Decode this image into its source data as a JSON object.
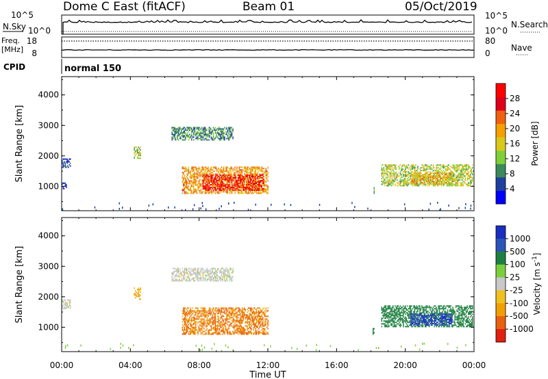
{
  "header": {
    "station": "Dome C East (fitACF)",
    "beam": "Beam 01",
    "date": "05/Oct/2019"
  },
  "top_panels": {
    "nsky_label": "N.Sky",
    "nsearch_label": "N.Search",
    "nsky_ticks": [
      "10^5",
      "10^0"
    ],
    "nsearch_ticks": [
      "10^5",
      "10^0"
    ],
    "freq_label_line1": "Freq.",
    "freq_label_line2": "[MHz]",
    "freq_ticks": [
      "18",
      "8"
    ],
    "nave_label": "Nave",
    "nave_ticks": [
      "80",
      "0"
    ],
    "cpid_label": "CPID",
    "cpid_value": "normal 150"
  },
  "colors": {
    "power_scale": [
      "#0000ff",
      "#1f3fa0",
      "#3a8a5a",
      "#7fcf3a",
      "#d8c81a",
      "#f5a000",
      "#f06010",
      "#e0001a",
      "#ff0000"
    ],
    "velocity_scale": [
      "#1a2fc0",
      "#2a55b8",
      "#1e8040",
      "#7ccf3c",
      "#c8c8c8",
      "#f0c020",
      "#f0a000",
      "#e86010",
      "#e02010",
      "#ff0000"
    ]
  },
  "chart_data": [
    {
      "type": "heatmap",
      "name": "power",
      "ylabel": "Slant Range [km]",
      "xlabel": "Time UT",
      "x_ticks": [
        "00:00",
        "04:00",
        "08:00",
        "12:00",
        "16:00",
        "20:00",
        "00:00"
      ],
      "y_ticks": [
        1000,
        2000,
        3000,
        4000
      ],
      "ylim": [
        200,
        4600
      ],
      "xlim_hours": [
        0,
        24
      ],
      "colorbar_label": "Power [dB]",
      "colorbar_ticks": [
        4,
        8,
        12,
        16,
        20,
        24,
        28
      ],
      "colorbar_range": [
        0,
        32
      ],
      "regions": [
        {
          "t": [
            7.0,
            12.0
          ],
          "r": [
            750,
            1650
          ],
          "value": 20
        },
        {
          "t": [
            8.2,
            11.8
          ],
          "r": [
            850,
            1350
          ],
          "value": 27
        },
        {
          "t": [
            6.4,
            10.0
          ],
          "r": [
            2500,
            2950
          ],
          "value": 9
        },
        {
          "t": [
            0.0,
            0.5
          ],
          "r": [
            1600,
            1900
          ],
          "value": 6
        },
        {
          "t": [
            0.0,
            0.3
          ],
          "r": [
            900,
            1100
          ],
          "value": 6
        },
        {
          "t": [
            18.6,
            23.9
          ],
          "r": [
            1000,
            1700
          ],
          "value": 14
        },
        {
          "t": [
            20.3,
            22.7
          ],
          "r": [
            1050,
            1450
          ],
          "value": 18
        },
        {
          "t": [
            4.2,
            4.6
          ],
          "r": [
            1900,
            2300
          ],
          "value": 14
        },
        {
          "t": [
            18.1,
            18.2
          ],
          "r": [
            750,
            950
          ],
          "value": 8
        }
      ]
    },
    {
      "type": "heatmap",
      "name": "velocity",
      "ylabel": "Slant Range [km]",
      "xlabel": "Time UT",
      "x_ticks": [
        "00:00",
        "04:00",
        "08:00",
        "12:00",
        "16:00",
        "20:00",
        "00:00"
      ],
      "y_ticks": [
        1000,
        2000,
        3000,
        4000
      ],
      "ylim": [
        200,
        4600
      ],
      "xlim_hours": [
        0,
        24
      ],
      "colorbar_label": "Velocity [m s^-1]",
      "colorbar_ticks": [
        "1000",
        "500",
        "100",
        "25",
        "-25",
        "-100",
        "-500",
        "-1000"
      ],
      "regions": [
        {
          "t": [
            7.0,
            12.0
          ],
          "r": [
            750,
            1650
          ],
          "value": -300
        },
        {
          "t": [
            6.4,
            10.0
          ],
          "r": [
            2500,
            2950
          ],
          "value": 0
        },
        {
          "t": [
            0.0,
            0.5
          ],
          "r": [
            1600,
            1900
          ],
          "value": 0
        },
        {
          "t": [
            18.6,
            23.9
          ],
          "r": [
            1000,
            1700
          ],
          "value": 150
        },
        {
          "t": [
            20.3,
            22.7
          ],
          "r": [
            1050,
            1450
          ],
          "value": 800
        },
        {
          "t": [
            4.2,
            4.6
          ],
          "r": [
            1900,
            2300
          ],
          "value": -80
        },
        {
          "t": [
            18.1,
            18.2
          ],
          "r": [
            750,
            950
          ],
          "value": 100
        }
      ]
    }
  ]
}
